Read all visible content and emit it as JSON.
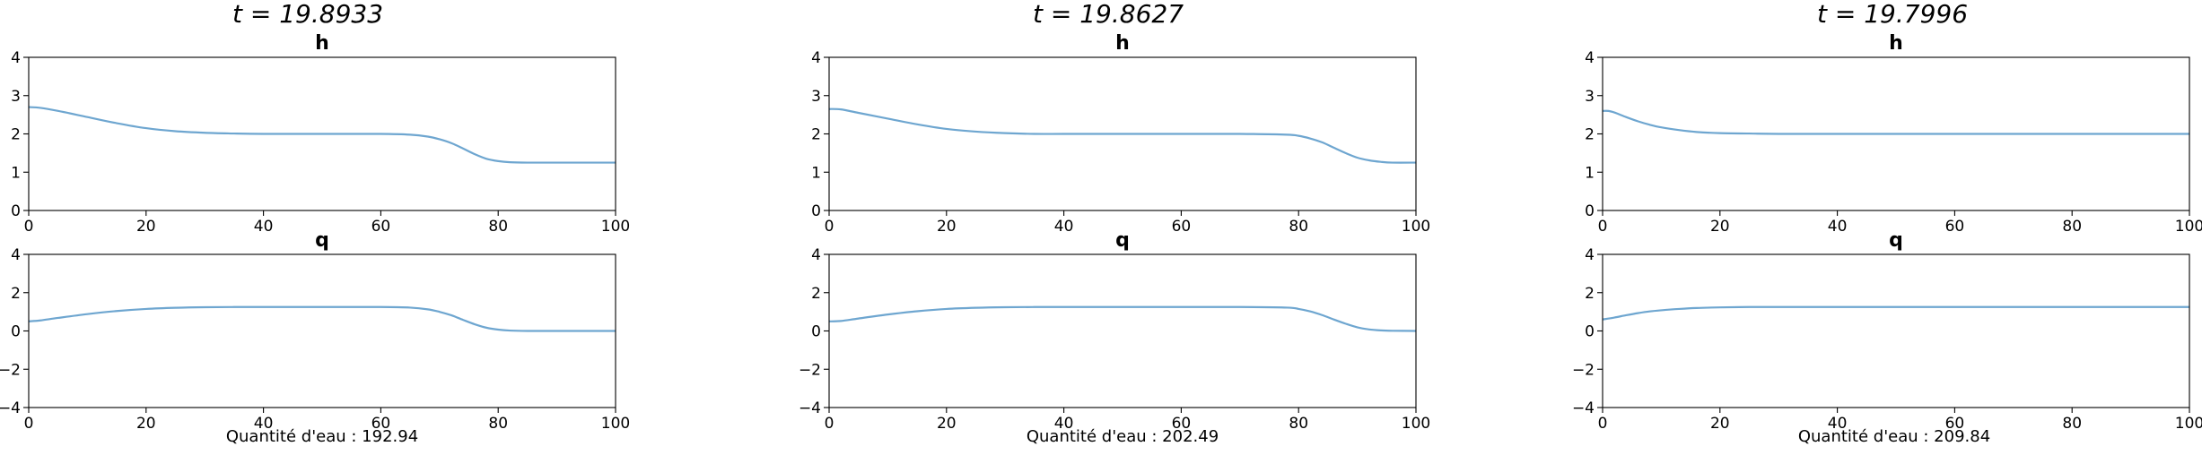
{
  "figure": {
    "line_color": "#6ea6d0",
    "panels": [
      {
        "title": "t = 19.8933",
        "footer": "Quantité d'eau : 192.94"
      },
      {
        "title": "t = 19.8627",
        "footer": "Quantité d'eau : 202.49"
      },
      {
        "title": "t = 19.7996",
        "footer": "Quantité d'eau : 209.84"
      }
    ]
  },
  "chart_data": [
    {
      "type": "line",
      "title": "h",
      "xlim": [
        0,
        100
      ],
      "ylim": [
        0,
        4
      ],
      "xticks": [
        0,
        20,
        40,
        60,
        80,
        100
      ],
      "yticks": [
        0,
        1,
        2,
        3,
        4
      ],
      "x": [
        0,
        2,
        5,
        10,
        15,
        20,
        25,
        30,
        35,
        40,
        50,
        60,
        65,
        68,
        70,
        72,
        74,
        76,
        78,
        80,
        82,
        85,
        90,
        100
      ],
      "y": [
        2.7,
        2.68,
        2.6,
        2.44,
        2.28,
        2.15,
        2.07,
        2.03,
        2.01,
        2.0,
        2.0,
        2.0,
        1.98,
        1.93,
        1.86,
        1.76,
        1.62,
        1.47,
        1.35,
        1.29,
        1.26,
        1.25,
        1.25,
        1.25
      ]
    },
    {
      "type": "line",
      "title": "q",
      "xlim": [
        0,
        100
      ],
      "ylim": [
        -4,
        4
      ],
      "xticks": [
        0,
        20,
        40,
        60,
        80,
        100
      ],
      "yticks": [
        -4,
        -2,
        0,
        2,
        4
      ],
      "x": [
        0,
        2,
        5,
        10,
        15,
        20,
        25,
        30,
        35,
        40,
        50,
        60,
        65,
        68,
        70,
        72,
        74,
        76,
        78,
        80,
        82,
        85,
        90,
        100
      ],
      "y": [
        0.5,
        0.55,
        0.68,
        0.88,
        1.04,
        1.15,
        1.21,
        1.24,
        1.25,
        1.25,
        1.25,
        1.25,
        1.22,
        1.13,
        1.0,
        0.82,
        0.58,
        0.35,
        0.17,
        0.07,
        0.02,
        0.0,
        0.0,
        0.0
      ]
    },
    {
      "type": "line",
      "title": "h",
      "xlim": [
        0,
        100
      ],
      "ylim": [
        0,
        4
      ],
      "xticks": [
        0,
        20,
        40,
        60,
        80,
        100
      ],
      "yticks": [
        0,
        1,
        2,
        3,
        4
      ],
      "x": [
        0,
        2,
        5,
        10,
        15,
        20,
        25,
        30,
        35,
        40,
        50,
        60,
        70,
        78,
        80,
        82,
        84,
        86,
        88,
        90,
        92,
        94,
        96,
        100
      ],
      "y": [
        2.65,
        2.64,
        2.55,
        2.4,
        2.25,
        2.13,
        2.06,
        2.02,
        2.0,
        2.0,
        2.0,
        2.0,
        2.0,
        1.98,
        1.95,
        1.88,
        1.78,
        1.64,
        1.5,
        1.38,
        1.31,
        1.27,
        1.25,
        1.25
      ]
    },
    {
      "type": "line",
      "title": "q",
      "xlim": [
        0,
        100
      ],
      "ylim": [
        -4,
        4
      ],
      "xticks": [
        0,
        20,
        40,
        60,
        80,
        100
      ],
      "yticks": [
        -4,
        -2,
        0,
        2,
        4
      ],
      "x": [
        0,
        2,
        5,
        10,
        15,
        20,
        25,
        30,
        35,
        40,
        50,
        60,
        70,
        78,
        80,
        82,
        84,
        86,
        88,
        90,
        92,
        94,
        96,
        100
      ],
      "y": [
        0.5,
        0.52,
        0.65,
        0.86,
        1.03,
        1.15,
        1.21,
        1.24,
        1.25,
        1.25,
        1.25,
        1.25,
        1.25,
        1.22,
        1.15,
        1.02,
        0.83,
        0.6,
        0.38,
        0.19,
        0.08,
        0.03,
        0.01,
        0.0
      ]
    },
    {
      "type": "line",
      "title": "h",
      "xlim": [
        0,
        100
      ],
      "ylim": [
        0,
        4
      ],
      "xticks": [
        0,
        20,
        40,
        60,
        80,
        100
      ],
      "yticks": [
        0,
        1,
        2,
        3,
        4
      ],
      "x": [
        0,
        1,
        2,
        4,
        6,
        8,
        10,
        13,
        16,
        20,
        25,
        30,
        40,
        60,
        80,
        100
      ],
      "y": [
        2.6,
        2.6,
        2.56,
        2.44,
        2.33,
        2.24,
        2.17,
        2.1,
        2.05,
        2.02,
        2.01,
        2.0,
        2.0,
        2.0,
        2.0,
        2.0
      ]
    },
    {
      "type": "line",
      "title": "q",
      "xlim": [
        0,
        100
      ],
      "ylim": [
        -4,
        4
      ],
      "xticks": [
        0,
        20,
        40,
        60,
        80,
        100
      ],
      "yticks": [
        -4,
        -2,
        0,
        2,
        4
      ],
      "x": [
        0,
        2,
        4,
        6,
        8,
        10,
        13,
        16,
        20,
        25,
        30,
        40,
        60,
        80,
        100
      ],
      "y": [
        0.6,
        0.7,
        0.82,
        0.93,
        1.02,
        1.08,
        1.15,
        1.2,
        1.23,
        1.25,
        1.25,
        1.25,
        1.25,
        1.25,
        1.25
      ]
    }
  ]
}
